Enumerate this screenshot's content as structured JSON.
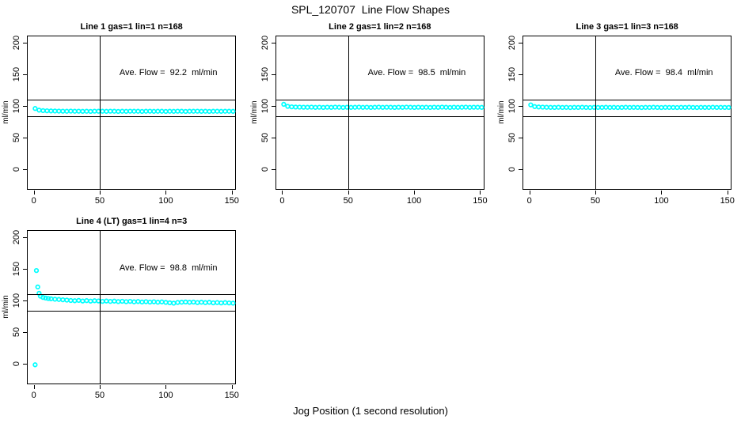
{
  "main": {
    "title": "SPL_120707  Line Flow Shapes",
    "xlabel": "Jog Position (1 second resolution)"
  },
  "chart_data": {
    "type": "scatter",
    "point_color": "#00FFFF",
    "axis_color": "#000000",
    "background": "#FFFFFF",
    "ylabel": "ml/min",
    "yticks": [
      0,
      50,
      100,
      150,
      200
    ],
    "xticks": [
      0,
      50,
      100,
      150
    ],
    "ylim": [
      -34,
      211
    ],
    "xlim": [
      -4.6,
      154
    ],
    "ref_lines_y": [
      110,
      84
    ],
    "ref_line_x": 50,
    "legend": "none",
    "grid": "off",
    "panels": [
      {
        "title": "Line 1 gas=1 lin=1 n=168",
        "ave_flow": "Ave. Flow =  92.2  ml/min",
        "ave_flow_value": 92.2,
        "n": 168,
        "x": [
          1,
          4,
          7,
          10,
          13,
          16,
          19,
          22,
          25,
          28,
          31,
          34,
          37,
          40,
          43,
          46,
          49,
          52,
          55,
          58,
          61,
          64,
          67,
          70,
          73,
          76,
          79,
          82,
          85,
          88,
          91,
          94,
          97,
          100,
          103,
          106,
          109,
          112,
          115,
          118,
          121,
          124,
          127,
          130,
          133,
          136,
          139,
          142,
          145,
          148,
          151
        ],
        "y": [
          96.6,
          94.0,
          93.3,
          93.0,
          92.8,
          92.6,
          92.5,
          92.4,
          92.3,
          92.5,
          92.2,
          92.4,
          92.1,
          92.3,
          92.0,
          92.4,
          92.2,
          92.3,
          92.1,
          92.4,
          92.2,
          92.0,
          92.3,
          92.1,
          92.4,
          92.2,
          92.3,
          92.0,
          92.2,
          92.4,
          92.1,
          92.3,
          92.2,
          92.0,
          92.3,
          92.1,
          92.4,
          92.2,
          92.0,
          92.3,
          92.2,
          92.4,
          92.1,
          92.3,
          92.0,
          92.2,
          92.3,
          92.1,
          92.2,
          92.3,
          92.1
        ]
      },
      {
        "title": "Line 2 gas=1 lin=2 n=168",
        "ave_flow": "Ave. Flow =  98.5  ml/min",
        "ave_flow_value": 98.5,
        "n": 168,
        "x": [
          1,
          4,
          7,
          10,
          13,
          16,
          19,
          22,
          25,
          28,
          31,
          34,
          37,
          40,
          43,
          46,
          49,
          52,
          55,
          58,
          61,
          64,
          67,
          70,
          73,
          76,
          79,
          82,
          85,
          88,
          91,
          94,
          97,
          100,
          103,
          106,
          109,
          112,
          115,
          118,
          121,
          124,
          127,
          130,
          133,
          136,
          139,
          142,
          145,
          148,
          151
        ],
        "y": [
          103.2,
          100.0,
          99.2,
          98.9,
          98.7,
          98.6,
          98.5,
          98.7,
          98.4,
          98.6,
          98.3,
          98.6,
          98.4,
          98.7,
          98.5,
          98.3,
          98.6,
          98.4,
          98.5,
          98.7,
          98.4,
          98.6,
          98.3,
          98.5,
          98.7,
          98.4,
          98.6,
          98.5,
          98.3,
          98.6,
          98.4,
          98.7,
          98.5,
          98.3,
          98.6,
          98.4,
          98.5,
          98.3,
          98.6,
          98.4,
          98.7,
          98.5,
          98.3,
          98.6,
          98.4,
          98.5,
          98.7,
          98.4,
          98.6,
          98.5,
          98.4
        ]
      },
      {
        "title": "Line 3 gas=1 lin=3 n=168",
        "ave_flow": "Ave. Flow =  98.4  ml/min",
        "ave_flow_value": 98.4,
        "n": 168,
        "x": [
          1,
          4,
          7,
          10,
          13,
          16,
          19,
          22,
          25,
          28,
          31,
          34,
          37,
          40,
          43,
          46,
          49,
          52,
          55,
          58,
          61,
          64,
          67,
          70,
          73,
          76,
          79,
          82,
          85,
          88,
          91,
          94,
          97,
          100,
          103,
          106,
          109,
          112,
          115,
          118,
          121,
          124,
          127,
          130,
          133,
          136,
          139,
          142,
          145,
          148,
          151
        ],
        "y": [
          102.4,
          99.6,
          99.0,
          98.7,
          98.5,
          98.4,
          98.3,
          98.5,
          98.2,
          98.4,
          98.1,
          98.4,
          98.2,
          98.5,
          98.3,
          98.1,
          98.4,
          98.2,
          98.3,
          98.5,
          98.2,
          98.4,
          98.1,
          98.3,
          98.5,
          98.2,
          98.4,
          98.3,
          98.1,
          98.4,
          98.2,
          98.5,
          98.3,
          98.1,
          98.4,
          98.2,
          98.3,
          98.1,
          98.4,
          98.2,
          98.5,
          98.3,
          98.1,
          98.4,
          98.2,
          98.3,
          98.5,
          98.2,
          98.4,
          98.3,
          98.2
        ]
      },
      {
        "title": "Line 4 (LT) gas=1 lin=4 n=3",
        "ave_flow": "Ave. Flow =  98.8  ml/min",
        "ave_flow_value": 98.8,
        "n": 3,
        "x": [
          1,
          2,
          3,
          4,
          5,
          7,
          9,
          11,
          13,
          16,
          19,
          22,
          25,
          28,
          31,
          34,
          37,
          40,
          43,
          46,
          49,
          52,
          55,
          58,
          61,
          64,
          67,
          70,
          73,
          76,
          79,
          82,
          85,
          88,
          91,
          94,
          97,
          100,
          103,
          106,
          109,
          112,
          115,
          118,
          121,
          124,
          127,
          130,
          133,
          136,
          139,
          142,
          145,
          148,
          151
        ],
        "y": [
          -1,
          148,
          122,
          112,
          107.5,
          105.5,
          104.5,
          103.8,
          103.2,
          102.6,
          102.2,
          101.8,
          101.2,
          100.6,
          100.2,
          100.8,
          99.8,
          100.4,
          99.6,
          100.2,
          99.9,
          99.3,
          99.8,
          99.1,
          99.6,
          98.9,
          99.4,
          98.7,
          99.2,
          98.5,
          99.0,
          98.3,
          98.8,
          98.1,
          98.6,
          97.9,
          98.4,
          97.6,
          97.0,
          96.4,
          97.5,
          97.9,
          98.3,
          97.7,
          98.1,
          97.4,
          97.9,
          97.2,
          97.7,
          96.9,
          97.4,
          96.7,
          97.2,
          96.8,
          96.4
        ]
      }
    ]
  }
}
